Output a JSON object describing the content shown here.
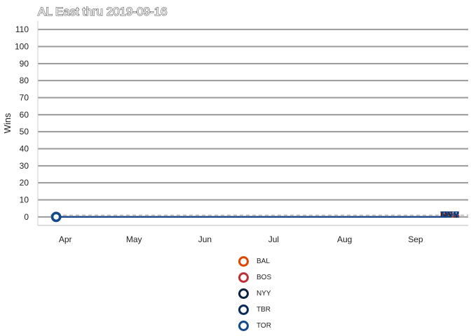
{
  "chart_data": {
    "type": "line",
    "title": "AL East thru 2019-09-16",
    "xlabel": "",
    "ylabel": "Wins",
    "x_ticks": [
      "Apr",
      "May",
      "Jun",
      "Jul",
      "Aug",
      "Sep"
    ],
    "y_ticks": [
      0,
      10,
      20,
      30,
      40,
      50,
      60,
      70,
      80,
      90,
      100,
      110
    ],
    "ylim": [
      -5,
      115
    ],
    "xlim": [
      "2019-03-20",
      "2019-09-24"
    ],
    "grid": true,
    "legend_position": "bottom",
    "series": [
      {
        "name": "BAL",
        "color": "#df4601",
        "end_label": "BAL",
        "points": [
          [
            "2019-03-28",
            0
          ],
          [
            "2019-09-16",
            0
          ]
        ]
      },
      {
        "name": "BOS",
        "color": "#bd3039",
        "end_label": "BOS",
        "points": [
          [
            "2019-03-28",
            0
          ],
          [
            "2019-09-16",
            0
          ]
        ]
      },
      {
        "name": "NYY",
        "color": "#0c2340",
        "end_label": "NYY",
        "points": [
          [
            "2019-03-28",
            0
          ],
          [
            "2019-09-16",
            0
          ]
        ]
      },
      {
        "name": "TBR",
        "color": "#092c5c",
        "end_label": "TBR",
        "points": [
          [
            "2019-03-28",
            0
          ],
          [
            "2019-09-16",
            0
          ]
        ]
      },
      {
        "name": "TOR",
        "color": "#134a8e",
        "end_label": "TOR",
        "points": [
          [
            "2019-03-28",
            0
          ],
          [
            "2019-09-16",
            0
          ]
        ]
      }
    ],
    "reference_line": {
      "y": 1,
      "style": "dashed",
      "color": "#aaaaaa"
    }
  }
}
